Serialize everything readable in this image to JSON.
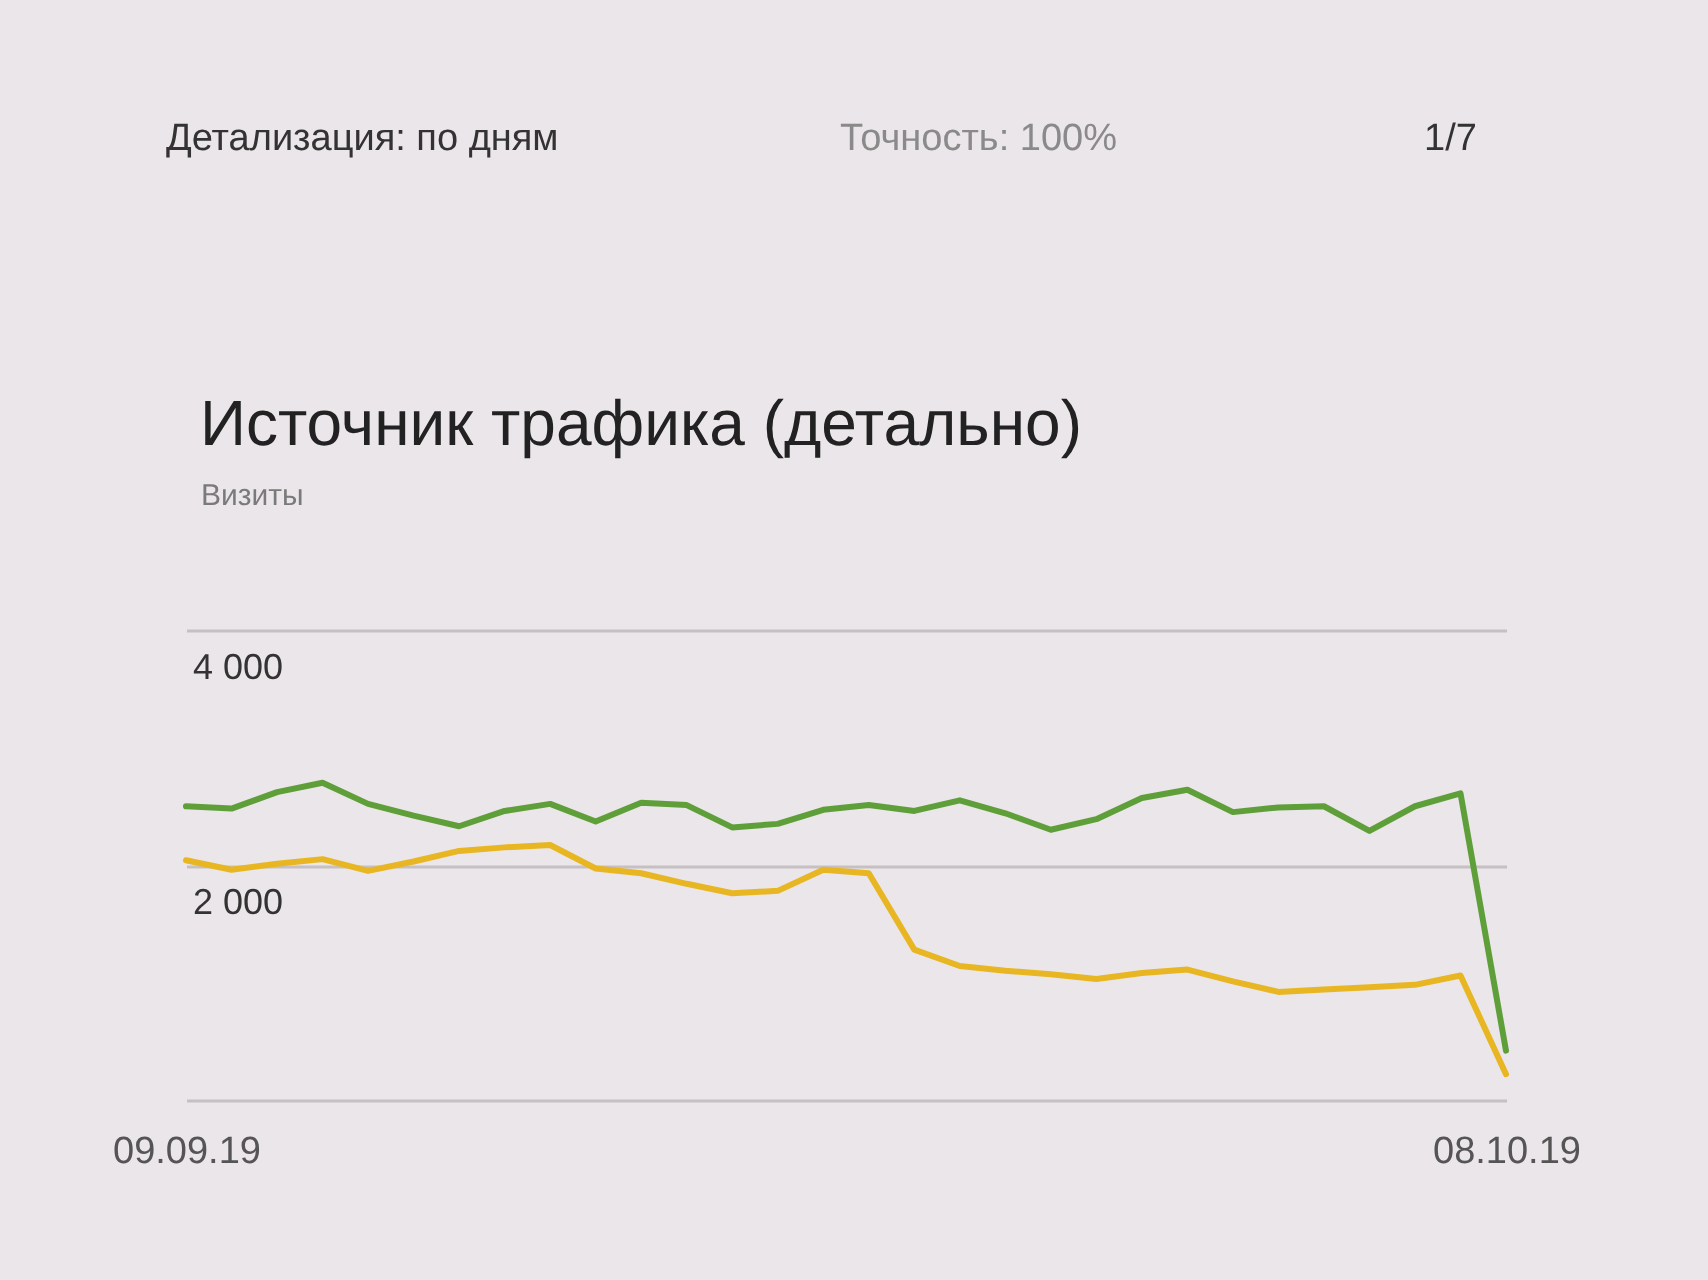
{
  "chart_data": {
    "type": "line",
    "title": "Источник трафика (детально)",
    "ylabel": "Визиты",
    "annotations": [
      "Детализация: по дням",
      "Точность: 100%",
      "1/7"
    ],
    "x": [
      "2019-09-09",
      "2019-09-10",
      "2019-09-11",
      "2019-09-12",
      "2019-09-13",
      "2019-09-14",
      "2019-09-15",
      "2019-09-16",
      "2019-09-17",
      "2019-09-18",
      "2019-09-19",
      "2019-09-20",
      "2019-09-21",
      "2019-09-22",
      "2019-09-23",
      "2019-09-24",
      "2019-09-25",
      "2019-09-26",
      "2019-09-27",
      "2019-09-28",
      "2019-09-29",
      "2019-09-30",
      "2019-10-01",
      "2019-10-02",
      "2019-10-03",
      "2019-10-04",
      "2019-10-05",
      "2019-10-06",
      "2019-10-07",
      "2019-10-08"
    ],
    "series": [
      {
        "color": "#5f9f3a",
        "values": [
          2500,
          2480,
          2620,
          2700,
          2520,
          2420,
          2330,
          2460,
          2520,
          2370,
          2530,
          2510,
          2320,
          2350,
          2470,
          2510,
          2460,
          2550,
          2440,
          2300,
          2390,
          2570,
          2640,
          2450,
          2490,
          2500,
          2290,
          2500,
          2610,
          420
        ]
      },
      {
        "color": "#e8b622",
        "values": [
          2040,
          1960,
          2010,
          2050,
          1950,
          2030,
          2120,
          2150,
          2170,
          1970,
          1930,
          1840,
          1760,
          1780,
          1960,
          1930,
          1280,
          1140,
          1100,
          1070,
          1030,
          1080,
          1110,
          1010,
          920,
          940,
          960,
          980,
          1060,
          220
        ]
      }
    ],
    "xlim": [
      "2019-09-09",
      "2019-10-08"
    ],
    "xticks": [
      {
        "value": "2019-09-09",
        "label": "09.09.19"
      },
      {
        "value": "2019-10-08",
        "label": "08.10.19"
      }
    ],
    "ylim": [
      0,
      4000
    ],
    "yticks": [
      {
        "value": 0,
        "label": null
      },
      {
        "value": 2000,
        "label": "2 000"
      },
      {
        "value": 4000,
        "label": "4 000"
      }
    ],
    "grid": "y"
  }
}
